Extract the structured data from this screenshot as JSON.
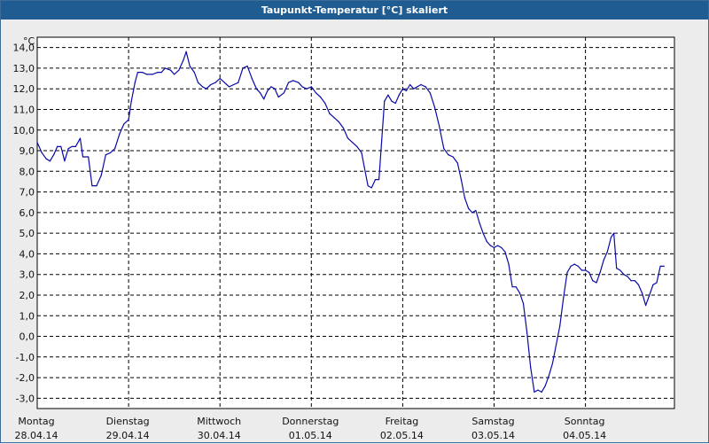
{
  "window": {
    "title": "Taupunkt-Temperatur [°C] skaliert"
  },
  "colors": {
    "titlebar": "#1e5c91",
    "line": "#0a0aa8",
    "background": "#ececec",
    "plot": "#ffffff"
  },
  "chart_data": {
    "type": "line",
    "title": "Taupunkt-Temperatur [°C] skaliert",
    "ylabel": "°C",
    "xlabel": "",
    "ylim": [
      -3.5,
      14.5
    ],
    "grid": true,
    "yticks": [
      "14,0",
      "13,0",
      "12,0",
      "11,0",
      "10,0",
      "9,0",
      "8,0",
      "7,0",
      "6,0",
      "5,0",
      "4,0",
      "3,0",
      "2,0",
      "1,0",
      "0,0",
      "-1,0",
      "-2,0",
      "-3,0"
    ],
    "xticks": [
      {
        "day": "Montag",
        "date": "28.04.14"
      },
      {
        "day": "Dienstag",
        "date": "29.04.14"
      },
      {
        "day": "Mittwoch",
        "date": "30.04.14"
      },
      {
        "day": "Donnerstag",
        "date": "01.05.14"
      },
      {
        "day": "Freitag",
        "date": "02.05.14"
      },
      {
        "day": "Samstag",
        "date": "03.05.14"
      },
      {
        "day": "Sonntag",
        "date": "04.05.14"
      }
    ],
    "series": [
      {
        "values": [
          [
            0.0,
            9.4
          ],
          [
            0.05,
            8.9
          ],
          [
            0.1,
            8.6
          ],
          [
            0.14,
            8.5
          ],
          [
            0.18,
            8.8
          ],
          [
            0.22,
            9.2
          ],
          [
            0.26,
            9.2
          ],
          [
            0.3,
            8.5
          ],
          [
            0.34,
            9.1
          ],
          [
            0.38,
            9.2
          ],
          [
            0.42,
            9.2
          ],
          [
            0.47,
            9.6
          ],
          [
            0.5,
            8.7
          ],
          [
            0.56,
            8.7
          ],
          [
            0.6,
            7.3
          ],
          [
            0.65,
            7.3
          ],
          [
            0.7,
            7.8
          ],
          [
            0.75,
            8.8
          ],
          [
            0.8,
            8.9
          ],
          [
            0.85,
            9.1
          ],
          [
            0.9,
            9.8
          ],
          [
            0.95,
            10.3
          ],
          [
            1.0,
            10.5
          ],
          [
            1.03,
            11.4
          ],
          [
            1.07,
            12.3
          ],
          [
            1.1,
            12.8
          ],
          [
            1.15,
            12.8
          ],
          [
            1.2,
            12.7
          ],
          [
            1.26,
            12.7
          ],
          [
            1.32,
            12.8
          ],
          [
            1.36,
            12.8
          ],
          [
            1.4,
            13.0
          ],
          [
            1.46,
            12.9
          ],
          [
            1.5,
            12.7
          ],
          [
            1.55,
            12.9
          ],
          [
            1.6,
            13.4
          ],
          [
            1.63,
            13.8
          ],
          [
            1.67,
            13.1
          ],
          [
            1.72,
            12.8
          ],
          [
            1.76,
            12.3
          ],
          [
            1.81,
            12.1
          ],
          [
            1.85,
            12.0
          ],
          [
            1.9,
            12.2
          ],
          [
            1.95,
            12.3
          ],
          [
            2.0,
            12.5
          ],
          [
            2.05,
            12.3
          ],
          [
            2.1,
            12.1
          ],
          [
            2.15,
            12.2
          ],
          [
            2.2,
            12.3
          ],
          [
            2.25,
            13.0
          ],
          [
            2.3,
            13.1
          ],
          [
            2.35,
            12.5
          ],
          [
            2.4,
            12.0
          ],
          [
            2.44,
            11.8
          ],
          [
            2.48,
            11.5
          ],
          [
            2.52,
            11.9
          ],
          [
            2.56,
            12.1
          ],
          [
            2.6,
            12.0
          ],
          [
            2.64,
            11.6
          ],
          [
            2.7,
            11.8
          ],
          [
            2.75,
            12.3
          ],
          [
            2.8,
            12.4
          ],
          [
            2.86,
            12.3
          ],
          [
            2.9,
            12.1
          ],
          [
            2.95,
            12.0
          ],
          [
            3.0,
            12.1
          ],
          [
            3.05,
            11.8
          ],
          [
            3.1,
            11.6
          ],
          [
            3.15,
            11.3
          ],
          [
            3.2,
            10.8
          ],
          [
            3.25,
            10.6
          ],
          [
            3.3,
            10.4
          ],
          [
            3.35,
            10.1
          ],
          [
            3.4,
            9.6
          ],
          [
            3.45,
            9.4
          ],
          [
            3.5,
            9.2
          ],
          [
            3.55,
            8.9
          ],
          [
            3.58,
            8.2
          ],
          [
            3.62,
            7.3
          ],
          [
            3.66,
            7.2
          ],
          [
            3.7,
            7.6
          ],
          [
            3.74,
            7.6
          ],
          [
            3.77,
            9.5
          ],
          [
            3.8,
            11.4
          ],
          [
            3.84,
            11.7
          ],
          [
            3.88,
            11.4
          ],
          [
            3.92,
            11.3
          ],
          [
            3.96,
            11.7
          ],
          [
            4.0,
            12.0
          ],
          [
            4.04,
            11.9
          ],
          [
            4.08,
            12.2
          ],
          [
            4.12,
            12.0
          ],
          [
            4.16,
            12.1
          ],
          [
            4.2,
            12.2
          ],
          [
            4.25,
            12.1
          ],
          [
            4.3,
            11.8
          ],
          [
            4.35,
            11.1
          ],
          [
            4.4,
            10.2
          ],
          [
            4.45,
            9.1
          ],
          [
            4.5,
            8.8
          ],
          [
            4.55,
            8.7
          ],
          [
            4.6,
            8.4
          ],
          [
            4.64,
            7.6
          ],
          [
            4.68,
            6.7
          ],
          [
            4.72,
            6.2
          ],
          [
            4.76,
            6.0
          ],
          [
            4.8,
            6.1
          ],
          [
            4.84,
            5.5
          ],
          [
            4.88,
            5.0
          ],
          [
            4.92,
            4.6
          ],
          [
            4.96,
            4.4
          ],
          [
            5.0,
            4.3
          ],
          [
            5.04,
            4.4
          ],
          [
            5.08,
            4.3
          ],
          [
            5.12,
            4.1
          ],
          [
            5.16,
            3.5
          ],
          [
            5.2,
            2.4
          ],
          [
            5.24,
            2.4
          ],
          [
            5.28,
            2.1
          ],
          [
            5.32,
            1.6
          ],
          [
            5.36,
            0.2
          ],
          [
            5.4,
            -1.5
          ],
          [
            5.44,
            -2.7
          ],
          [
            5.48,
            -2.6
          ],
          [
            5.52,
            -2.7
          ],
          [
            5.56,
            -2.4
          ],
          [
            5.6,
            -1.9
          ],
          [
            5.64,
            -1.3
          ],
          [
            5.68,
            -0.4
          ],
          [
            5.72,
            0.5
          ],
          [
            5.76,
            1.9
          ],
          [
            5.8,
            3.1
          ],
          [
            5.84,
            3.4
          ],
          [
            5.88,
            3.5
          ],
          [
            5.92,
            3.4
          ],
          [
            5.96,
            3.2
          ],
          [
            6.0,
            3.2
          ],
          [
            6.04,
            3.1
          ],
          [
            6.08,
            2.7
          ],
          [
            6.12,
            2.6
          ],
          [
            6.16,
            3.1
          ],
          [
            6.2,
            3.7
          ],
          [
            6.24,
            4.1
          ],
          [
            6.28,
            4.8
          ],
          [
            6.31,
            5.0
          ],
          [
            6.34,
            3.3
          ],
          [
            6.38,
            3.2
          ],
          [
            6.42,
            3.0
          ],
          [
            6.46,
            2.9
          ],
          [
            6.5,
            2.7
          ],
          [
            6.54,
            2.7
          ],
          [
            6.58,
            2.5
          ],
          [
            6.62,
            2.1
          ],
          [
            6.66,
            1.5
          ],
          [
            6.7,
            2.0
          ],
          [
            6.74,
            2.5
          ],
          [
            6.78,
            2.6
          ],
          [
            6.82,
            3.4
          ],
          [
            6.86,
            3.4
          ]
        ]
      }
    ]
  }
}
